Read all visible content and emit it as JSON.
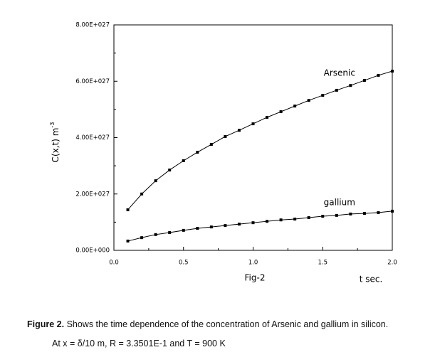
{
  "chart_data": {
    "type": "line",
    "ylabel": "C(x,t) m",
    "ylabel_sup": "-3",
    "xlabel": "t sec.",
    "annotation": "Fig-2",
    "x": [
      0.1,
      0.2,
      0.3,
      0.4,
      0.5,
      0.6,
      0.7,
      0.8,
      0.9,
      1.0,
      1.1,
      1.2,
      1.3,
      1.4,
      1.5,
      1.6,
      1.7,
      1.8,
      1.9,
      2.0
    ],
    "series": [
      {
        "name": "Arsenic",
        "color": "#000000",
        "values": [
          1.44e+27,
          2e+27,
          2.47e+27,
          2.85e+27,
          3.18e+27,
          3.48e+27,
          3.76e+27,
          4.04e+27,
          4.26e+27,
          4.49e+27,
          4.72e+27,
          4.92e+27,
          5.12e+27,
          5.32e+27,
          5.5e+27,
          5.68e+27,
          5.85e+27,
          6.03e+27,
          6.21e+27,
          6.36e+27
        ]
      },
      {
        "name": "gallium",
        "color": "#000000",
        "values": [
          3.3e+26,
          4.5e+26,
          5.6e+26,
          6.3e+26,
          7.1e+26,
          7.8e+26,
          8.3e+26,
          8.8e+26,
          9.3e+26,
          9.8e+26,
          1.03e+27,
          1.08e+27,
          1.11e+27,
          1.16e+27,
          1.21e+27,
          1.24e+27,
          1.29e+27,
          1.31e+27,
          1.34e+27,
          1.39e+27
        ]
      }
    ],
    "xlim": [
      0,
      2
    ],
    "xticks": [
      {
        "value": 0,
        "label": "0.0"
      },
      0.5,
      {
        "value": 1,
        "label": "1.0"
      },
      1.5,
      {
        "value": 2,
        "label": "2.0"
      }
    ],
    "ylim": [
      0,
      8e+27
    ],
    "yticks": [
      {
        "value": 0,
        "label": "0.00E+000"
      },
      {
        "value": 2e+27,
        "label": "2.00E+027"
      },
      {
        "value": 4e+27,
        "label": "4.00E+027"
      },
      {
        "value": 6e+27,
        "label": "6.00E+027"
      },
      {
        "value": 8e+27,
        "label": "8.00E+027"
      }
    ]
  },
  "caption": {
    "label": "Figure 2.",
    "text": " Shows the time dependence of the concentration of Arsenic and gallium in silicon.",
    "line2": "At x = δ/10 m, R = 3.3501E-1 and T = 900 K"
  }
}
